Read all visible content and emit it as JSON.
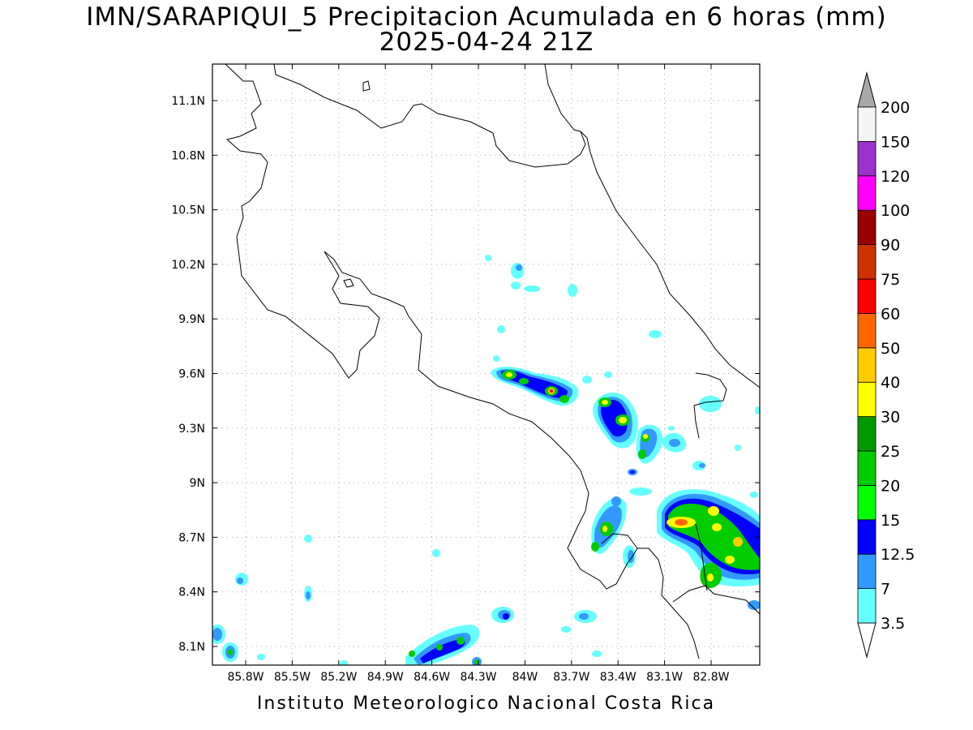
{
  "title": {
    "line1": "IMN/SARAPIQUI_5 Precipitacion Acumulada en 6 horas (mm)",
    "line2": "2025-04-24 21Z"
  },
  "footer": "Instituto Meteorologico Nacional Costa Rica",
  "map": {
    "lon_ticks": [
      "85.8W",
      "85.5W",
      "85.2W",
      "84.9W",
      "84.6W",
      "84.3W",
      "84W",
      "83.7W",
      "83.4W",
      "83.1W",
      "82.8W"
    ],
    "lat_ticks": [
      "11.1N",
      "10.8N",
      "10.5N",
      "10.2N",
      "9.9N",
      "9.6N",
      "9.3N",
      "9N",
      "8.7N",
      "8.4N",
      "8.1N"
    ],
    "grid": true,
    "background": "#ffffff",
    "coastline_color": "#000000"
  },
  "colorbar": {
    "labels": [
      "3.5",
      "7",
      "12.5",
      "15",
      "20",
      "25",
      "30",
      "40",
      "50",
      "60",
      "75",
      "90",
      "100",
      "120",
      "150",
      "200"
    ],
    "colors": [
      "#66ffff",
      "#3399ff",
      "#0000ff",
      "#00ff00",
      "#00cc00",
      "#009900",
      "#ffff00",
      "#ffcc00",
      "#ff6600",
      "#ff0000",
      "#cc3300",
      "#990000",
      "#ff00ff",
      "#9933cc",
      "#f5f5f5"
    ],
    "over_color": "#aaaaaa",
    "under_color": "#ffffff"
  }
}
